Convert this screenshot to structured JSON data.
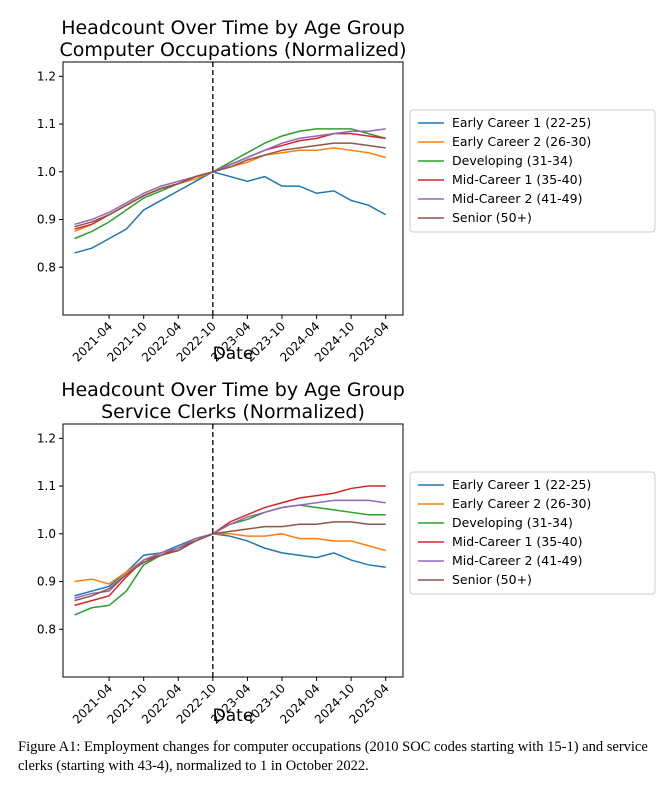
{
  "chart_data": [
    {
      "type": "line",
      "title": "Headcount Over Time by Age Group",
      "subtitle": "Computer Occupations (Normalized)",
      "x_label": "Date",
      "x": [
        "2020-10",
        "2021-01",
        "2021-04",
        "2021-07",
        "2021-10",
        "2022-01",
        "2022-04",
        "2022-07",
        "2022-10",
        "2023-01",
        "2023-04",
        "2023-07",
        "2023-10",
        "2024-01",
        "2024-04",
        "2024-07",
        "2024-10",
        "2025-01",
        "2025-04"
      ],
      "xlim": [
        "2020-08",
        "2025-07"
      ],
      "xticks": [
        "2021-04",
        "2021-10",
        "2022-04",
        "2022-10",
        "2023-04",
        "2023-10",
        "2024-04",
        "2024-10",
        "2025-04"
      ],
      "ylim": [
        0.7,
        1.23
      ],
      "yticks": [
        0.8,
        0.9,
        {
          "value": 1,
          "label": "1.0"
        },
        1.1,
        1.2
      ],
      "vline": "2022-10",
      "legend": "right",
      "grid": false,
      "series": [
        {
          "name": "Early Career 1 (22-25)",
          "color": "#1f77b4",
          "values": [
            0.83,
            0.84,
            0.86,
            0.88,
            0.92,
            0.94,
            0.96,
            0.98,
            1.0,
            0.99,
            0.98,
            0.99,
            0.97,
            0.97,
            0.955,
            0.96,
            0.94,
            0.93,
            0.91
          ]
        },
        {
          "name": "Early Career 2 (26-30)",
          "color": "#ff7f0e",
          "values": [
            0.875,
            0.89,
            0.91,
            0.93,
            0.95,
            0.965,
            0.975,
            0.985,
            1.0,
            1.01,
            1.02,
            1.035,
            1.04,
            1.045,
            1.045,
            1.05,
            1.045,
            1.04,
            1.03
          ]
        },
        {
          "name": "Developing (31-34)",
          "color": "#2ca02c",
          "values": [
            0.86,
            0.875,
            0.895,
            0.92,
            0.945,
            0.96,
            0.975,
            0.99,
            1.0,
            1.02,
            1.04,
            1.06,
            1.075,
            1.085,
            1.09,
            1.09,
            1.09,
            1.08,
            1.07
          ]
        },
        {
          "name": "Mid-Career 1 (35-40)",
          "color": "#d62728",
          "values": [
            0.88,
            0.89,
            0.91,
            0.93,
            0.95,
            0.965,
            0.975,
            0.99,
            1.0,
            1.015,
            1.03,
            1.045,
            1.055,
            1.065,
            1.07,
            1.08,
            1.08,
            1.075,
            1.07
          ]
        },
        {
          "name": "Mid-Career 2 (41-49)",
          "color": "#9467bd",
          "values": [
            0.89,
            0.9,
            0.915,
            0.935,
            0.955,
            0.97,
            0.98,
            0.99,
            1.0,
            1.015,
            1.03,
            1.045,
            1.06,
            1.07,
            1.075,
            1.08,
            1.085,
            1.085,
            1.09
          ]
        },
        {
          "name": "Senior (50+)",
          "color": "#8c564b",
          "values": [
            0.885,
            0.895,
            0.91,
            0.93,
            0.95,
            0.965,
            0.975,
            0.99,
            1.0,
            1.01,
            1.025,
            1.035,
            1.045,
            1.05,
            1.055,
            1.06,
            1.06,
            1.055,
            1.05
          ]
        }
      ]
    },
    {
      "type": "line",
      "title": "Headcount Over Time by Age Group",
      "subtitle": "Service Clerks (Normalized)",
      "x_label": "Date",
      "x": [
        "2020-10",
        "2021-01",
        "2021-04",
        "2021-07",
        "2021-10",
        "2022-01",
        "2022-04",
        "2022-07",
        "2022-10",
        "2023-01",
        "2023-04",
        "2023-07",
        "2023-10",
        "2024-01",
        "2024-04",
        "2024-07",
        "2024-10",
        "2025-01",
        "2025-04"
      ],
      "xlim": [
        "2020-08",
        "2025-07"
      ],
      "xticks": [
        "2021-04",
        "2021-10",
        "2022-04",
        "2022-10",
        "2023-04",
        "2023-10",
        "2024-04",
        "2024-10",
        "2025-04"
      ],
      "ylim": [
        0.7,
        1.23
      ],
      "yticks": [
        0.8,
        0.9,
        {
          "value": 1,
          "label": "1.0"
        },
        1.1,
        1.2
      ],
      "vline": "2022-10",
      "legend": "right",
      "grid": false,
      "series": [
        {
          "name": "Early Career 1 (22-25)",
          "color": "#1f77b4",
          "values": [
            0.87,
            0.88,
            0.89,
            0.92,
            0.955,
            0.96,
            0.975,
            0.99,
            1.0,
            0.995,
            0.985,
            0.97,
            0.96,
            0.955,
            0.95,
            0.96,
            0.945,
            0.935,
            0.93
          ]
        },
        {
          "name": "Early Career 2 (26-30)",
          "color": "#ff7f0e",
          "values": [
            0.9,
            0.905,
            0.895,
            0.92,
            0.945,
            0.96,
            0.97,
            0.985,
            1.0,
            1.0,
            0.995,
            0.995,
            1.0,
            0.99,
            0.99,
            0.985,
            0.985,
            0.975,
            0.965
          ]
        },
        {
          "name": "Developing (31-34)",
          "color": "#2ca02c",
          "values": [
            0.83,
            0.845,
            0.85,
            0.88,
            0.935,
            0.955,
            0.965,
            0.985,
            1.0,
            1.02,
            1.03,
            1.045,
            1.055,
            1.06,
            1.055,
            1.05,
            1.045,
            1.04,
            1.04
          ]
        },
        {
          "name": "Mid-Career 1 (35-40)",
          "color": "#d62728",
          "values": [
            0.85,
            0.86,
            0.87,
            0.91,
            0.945,
            0.955,
            0.97,
            0.985,
            1.0,
            1.025,
            1.04,
            1.055,
            1.065,
            1.075,
            1.08,
            1.085,
            1.095,
            1.1,
            1.1
          ]
        },
        {
          "name": "Mid-Career 2 (41-49)",
          "color": "#9467bd",
          "values": [
            0.865,
            0.875,
            0.88,
            0.915,
            0.945,
            0.96,
            0.97,
            0.99,
            1.0,
            1.02,
            1.035,
            1.045,
            1.055,
            1.06,
            1.065,
            1.07,
            1.07,
            1.07,
            1.065
          ]
        },
        {
          "name": "Senior (50+)",
          "color": "#8c564b",
          "values": [
            0.86,
            0.87,
            0.885,
            0.915,
            0.94,
            0.955,
            0.965,
            0.985,
            1.0,
            1.005,
            1.01,
            1.015,
            1.015,
            1.02,
            1.02,
            1.025,
            1.025,
            1.02,
            1.02
          ]
        }
      ]
    }
  ],
  "caption": "Figure A1: Employment changes for computer occupations (2010 SOC codes starting with 15-1) and service clerks (starting with 43-4), normalized to 1 in October 2022."
}
